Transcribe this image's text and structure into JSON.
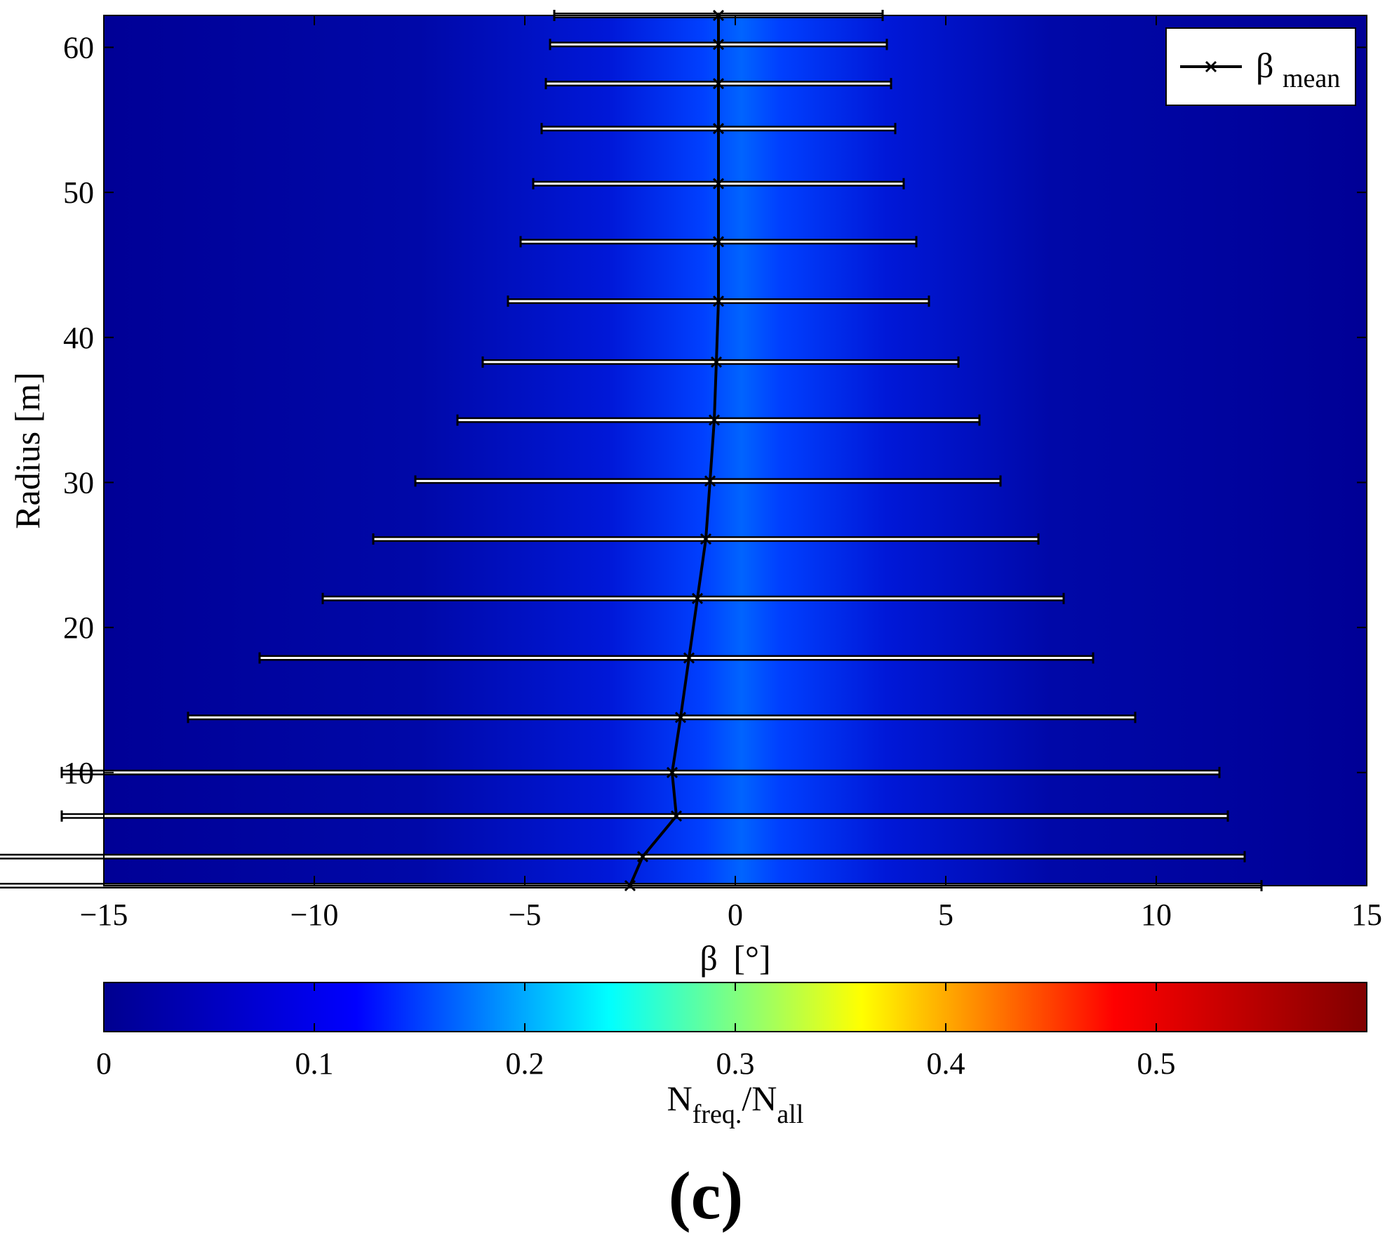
{
  "chart_data": {
    "type": "heatmap",
    "xlabel_symbol": "β",
    "xlabel_unit": "[°]",
    "ylabel": "Radius [m]",
    "xlim": [
      -15,
      15
    ],
    "ylim": [
      2.2,
      62.2
    ],
    "xticks": [
      -15,
      -10,
      -5,
      0,
      5,
      10,
      15
    ],
    "xtick_labels": [
      "−15",
      "−10",
      "−5",
      "0",
      "5",
      "10",
      "15"
    ],
    "yticks": [
      10,
      20,
      30,
      40,
      50,
      60
    ],
    "ytick_labels": [
      "10",
      "20",
      "30",
      "40",
      "50",
      "60"
    ],
    "grid": false,
    "colormap": "jet",
    "colorbar": {
      "orientation": "horizontal",
      "range": [
        0,
        0.6
      ],
      "ticks": [
        0,
        0.1,
        0.2,
        0.3,
        0.4,
        0.5
      ],
      "tick_labels": [
        "0",
        "0.1",
        "0.2",
        "0.3",
        "0.4",
        "0.5"
      ],
      "label_main_1": "N",
      "label_sub_1": "freq.",
      "label_main_2": "/N",
      "label_sub_2": "all",
      "stops": [
        "#00008f",
        "#0000ff",
        "#00ffff",
        "#ffff00",
        "#ff0000",
        "#800000"
      ]
    },
    "legend": {
      "position": "top-right",
      "symbol": "β",
      "subscript": "mean"
    },
    "series": [
      {
        "name": "β_mean",
        "color": "#000000",
        "marker": "x",
        "points": [
          {
            "y": 62.2,
            "x": -0.4,
            "lo": -4.3,
            "hi": 3.5
          },
          {
            "y": 60.2,
            "x": -0.4,
            "lo": -4.4,
            "hi": 3.6
          },
          {
            "y": 57.5,
            "x": -0.4,
            "lo": -4.5,
            "hi": 3.7
          },
          {
            "y": 54.4,
            "x": -0.4,
            "lo": -4.6,
            "hi": 3.8
          },
          {
            "y": 50.6,
            "x": -0.4,
            "lo": -4.8,
            "hi": 4.0
          },
          {
            "y": 46.6,
            "x": -0.4,
            "lo": -5.1,
            "hi": 4.3
          },
          {
            "y": 42.5,
            "x": -0.4,
            "lo": -5.4,
            "hi": 4.6
          },
          {
            "y": 38.3,
            "x": -0.45,
            "lo": -6.0,
            "hi": 5.3
          },
          {
            "y": 34.3,
            "x": -0.5,
            "lo": -6.6,
            "hi": 5.8
          },
          {
            "y": 30.1,
            "x": -0.6,
            "lo": -7.6,
            "hi": 6.3
          },
          {
            "y": 26.1,
            "x": -0.7,
            "lo": -8.6,
            "hi": 7.2
          },
          {
            "y": 22.0,
            "x": -0.9,
            "lo": -9.8,
            "hi": 7.8
          },
          {
            "y": 17.9,
            "x": -1.1,
            "lo": -11.3,
            "hi": 8.5
          },
          {
            "y": 13.8,
            "x": -1.3,
            "lo": -13.0,
            "hi": 9.5
          },
          {
            "y": 10.0,
            "x": -1.5,
            "lo": -16.0,
            "hi": 11.5
          },
          {
            "y": 7.0,
            "x": -1.4,
            "lo": -16.0,
            "hi": 11.7
          },
          {
            "y": 4.2,
            "x": -2.2,
            "lo": -19.5,
            "hi": 12.1
          },
          {
            "y": 2.2,
            "x": -2.5,
            "lo": -21.4,
            "hi": 12.5
          }
        ]
      }
    ]
  },
  "panel_label": "(c)"
}
